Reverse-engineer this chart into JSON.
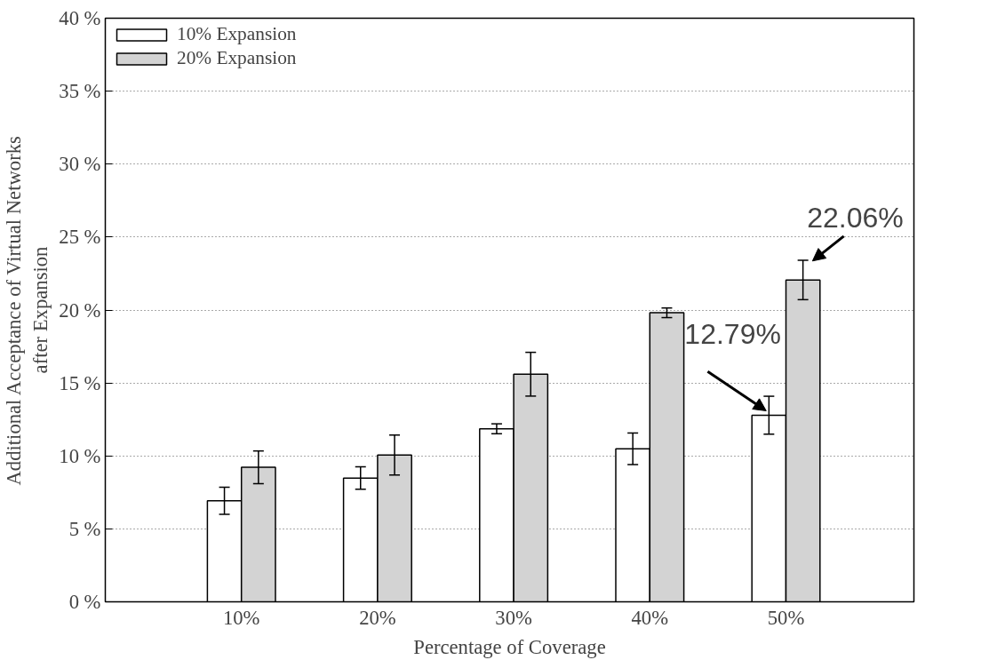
{
  "chart_data": {
    "type": "bar",
    "xlabel": "Percentage of Coverage",
    "ylabel": "Additional Acceptance of Virtual Networks\nafter Expansion",
    "categories": [
      "10%",
      "20%",
      "30%",
      "40%",
      "50%"
    ],
    "series": [
      {
        "name": "10% Expansion",
        "color": "#ffffff",
        "values": [
          6.92,
          8.48,
          11.86,
          10.49,
          12.79
        ],
        "errors": [
          0.93,
          0.77,
          0.34,
          1.08,
          1.3
        ]
      },
      {
        "name": "20% Expansion",
        "color": "#d3d3d3",
        "values": [
          9.22,
          10.06,
          15.6,
          19.81,
          22.06
        ],
        "errors": [
          1.12,
          1.37,
          1.5,
          0.33,
          1.35
        ]
      }
    ],
    "ylim": [
      0,
      40
    ],
    "yticks": [
      {
        "value": 0,
        "label": "0 %"
      },
      {
        "value": 5,
        "label": "5 %"
      },
      {
        "value": 10,
        "label": "10 %"
      },
      {
        "value": 15,
        "label": "15 %"
      },
      {
        "value": 20,
        "label": "20 %"
      },
      {
        "value": 25,
        "label": "25 %"
      },
      {
        "value": 30,
        "label": "30 %"
      },
      {
        "value": 35,
        "label": "35 %"
      },
      {
        "value": 40,
        "label": "40 %"
      }
    ],
    "grid": "y",
    "legend": "top left",
    "annotations": [
      {
        "text": "12.79%",
        "x": "50%",
        "y": 12.79
      },
      {
        "text": "22.06%",
        "x": "50%",
        "y": 22.06
      }
    ]
  }
}
